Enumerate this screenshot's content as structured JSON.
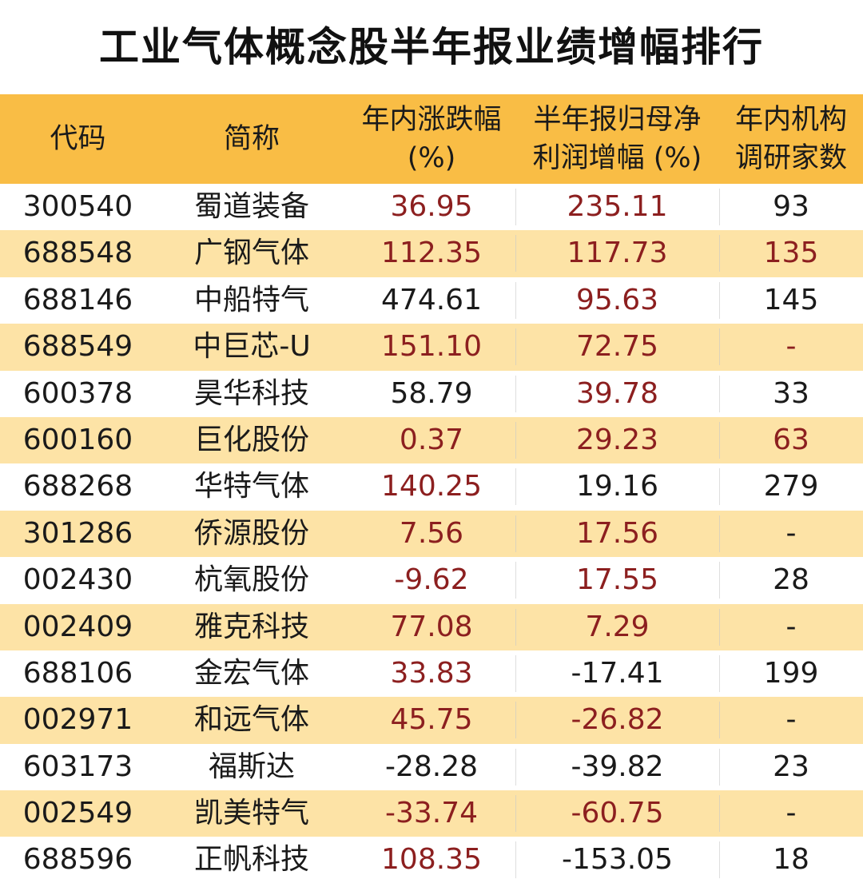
{
  "title": "工业气体概念股半年报业绩增幅排行",
  "header": {
    "code": "代码",
    "name": "简称",
    "change_line1": "年内涨跌幅",
    "change_line2": "(%)",
    "profit_line1": "半年报归母净",
    "profit_line2": "利润增幅 (%)",
    "inst_line1": "年内机构",
    "inst_line2": "调研家数"
  },
  "colors": {
    "header_bg": "#f9bd45",
    "alt_row_bg": "#fde3a6",
    "positive_text": "#8c1f1f",
    "neutral_text": "#1a1a1a"
  },
  "rows": [
    {
      "code": "300540",
      "name": "蜀道装备",
      "change": "36.95",
      "profit": "235.11",
      "inst": "93",
      "change_red": true,
      "profit_red": true,
      "inst_red": false
    },
    {
      "code": "688548",
      "name": "广钢气体",
      "change": "112.35",
      "profit": "117.73",
      "inst": "135",
      "change_red": true,
      "profit_red": true,
      "inst_red": true
    },
    {
      "code": "688146",
      "name": "中船特气",
      "change": "474.61",
      "profit": "95.63",
      "inst": "145",
      "change_red": false,
      "profit_red": true,
      "inst_red": false
    },
    {
      "code": "688549",
      "name": "中巨芯-U",
      "change": "151.10",
      "profit": "72.75",
      "inst": "-",
      "change_red": true,
      "profit_red": true,
      "inst_red": true
    },
    {
      "code": "600378",
      "name": "昊华科技",
      "change": "58.79",
      "profit": "39.78",
      "inst": "33",
      "change_red": false,
      "profit_red": true,
      "inst_red": false
    },
    {
      "code": "600160",
      "name": "巨化股份",
      "change": "0.37",
      "profit": "29.23",
      "inst": "63",
      "change_red": true,
      "profit_red": true,
      "inst_red": true
    },
    {
      "code": "688268",
      "name": "华特气体",
      "change": "140.25",
      "profit": "19.16",
      "inst": "279",
      "change_red": true,
      "profit_red": false,
      "inst_red": false
    },
    {
      "code": "301286",
      "name": "侨源股份",
      "change": "7.56",
      "profit": "17.56",
      "inst": "-",
      "change_red": true,
      "profit_red": true,
      "inst_red": false
    },
    {
      "code": "002430",
      "name": "杭氧股份",
      "change": "-9.62",
      "profit": "17.55",
      "inst": "28",
      "change_red": true,
      "profit_red": true,
      "inst_red": false
    },
    {
      "code": "002409",
      "name": "雅克科技",
      "change": "77.08",
      "profit": "7.29",
      "inst": "-",
      "change_red": true,
      "profit_red": true,
      "inst_red": false
    },
    {
      "code": "688106",
      "name": "金宏气体",
      "change": "33.83",
      "profit": "-17.41",
      "inst": "199",
      "change_red": true,
      "profit_red": false,
      "inst_red": false
    },
    {
      "code": "002971",
      "name": "和远气体",
      "change": "45.75",
      "profit": "-26.82",
      "inst": "-",
      "change_red": true,
      "profit_red": true,
      "inst_red": false
    },
    {
      "code": "603173",
      "name": "福斯达",
      "change": "-28.28",
      "profit": "-39.82",
      "inst": "23",
      "change_red": false,
      "profit_red": false,
      "inst_red": false
    },
    {
      "code": "002549",
      "name": "凯美特气",
      "change": "-33.74",
      "profit": "-60.75",
      "inst": "-",
      "change_red": true,
      "profit_red": true,
      "inst_red": false
    },
    {
      "code": "688596",
      "name": "正帆科技",
      "change": "108.35",
      "profit": "-153.05",
      "inst": "18",
      "change_red": true,
      "profit_red": false,
      "inst_red": false
    }
  ]
}
